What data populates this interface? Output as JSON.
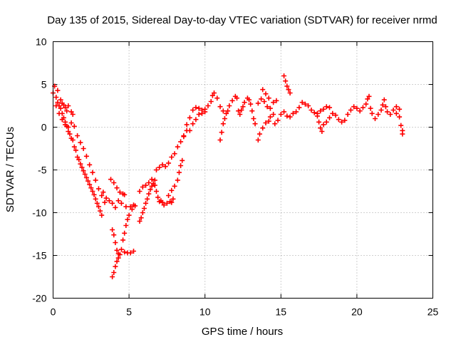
{
  "chart_data": {
    "type": "scatter",
    "title": "Day 135 of 2015, Sidereal Day-to-day VTEC variation (SDTVAR) for receiver nrmd",
    "xlabel": "GPS time / hours",
    "ylabel": "SDTVAR / TECUs",
    "xlim": [
      0,
      25
    ],
    "ylim": [
      -20,
      10
    ],
    "x_ticks": [
      0,
      5,
      10,
      15,
      20,
      25
    ],
    "y_ticks": [
      -20,
      -15,
      -10,
      -5,
      0,
      5,
      10
    ],
    "grid": true,
    "marker": "plus",
    "color": "#ff0000",
    "series": [
      {
        "values": [
          [
            0.0,
            4.0
          ],
          [
            0.1,
            4.8
          ],
          [
            0.2,
            3.5
          ],
          [
            0.3,
            2.9
          ],
          [
            0.4,
            2.5
          ],
          [
            0.5,
            2.2
          ],
          [
            0.6,
            1.6
          ],
          [
            0.7,
            1.1
          ],
          [
            0.8,
            0.6
          ],
          [
            0.9,
            0.1
          ],
          [
            1.0,
            -0.5
          ],
          [
            1.1,
            -0.8
          ],
          [
            1.2,
            -1.3
          ],
          [
            1.3,
            -1.5
          ],
          [
            1.4,
            -2.3
          ],
          [
            1.5,
            -2.7
          ],
          [
            1.6,
            -3.5
          ],
          [
            1.7,
            -3.8
          ],
          [
            1.8,
            -4.3
          ],
          [
            1.9,
            -4.7
          ],
          [
            2.0,
            -5.1
          ],
          [
            2.1,
            -5.5
          ],
          [
            2.2,
            -5.9
          ],
          [
            2.3,
            -6.3
          ],
          [
            2.4,
            -6.7
          ],
          [
            2.5,
            -7.1
          ],
          [
            2.6,
            -7.5
          ],
          [
            2.7,
            -7.9
          ],
          [
            2.8,
            -8.4
          ],
          [
            2.9,
            -8.9
          ],
          [
            3.0,
            -9.3
          ],
          [
            3.1,
            -9.8
          ],
          [
            3.2,
            -10.3
          ],
          [
            0.2,
            2.5
          ],
          [
            0.4,
            1.6
          ],
          [
            0.6,
            0.9
          ],
          [
            0.8,
            0.3
          ],
          [
            1.0,
            0.0
          ],
          [
            1.2,
            0.5
          ],
          [
            1.4,
            0.1
          ],
          [
            1.6,
            -1.0
          ],
          [
            1.8,
            -1.8
          ],
          [
            2.0,
            -2.5
          ],
          [
            2.2,
            -3.4
          ],
          [
            2.4,
            -4.4
          ],
          [
            2.6,
            -5.3
          ],
          [
            2.8,
            -6.2
          ],
          [
            3.0,
            -7.2
          ],
          [
            3.2,
            -8.0
          ],
          [
            3.4,
            -8.8
          ],
          [
            3.3,
            -7.6
          ],
          [
            3.5,
            -8.3
          ],
          [
            3.7,
            -8.6
          ],
          [
            3.9,
            -8.9
          ],
          [
            4.1,
            -9.4
          ],
          [
            4.3,
            -8.6
          ],
          [
            4.5,
            -8.9
          ],
          [
            4.8,
            -9.3
          ],
          [
            5.1,
            -9.3
          ],
          [
            5.3,
            -9.1
          ],
          [
            0.6,
            2.8
          ],
          [
            0.8,
            2.3
          ],
          [
            1.0,
            2.5
          ],
          [
            1.2,
            1.8
          ],
          [
            1.3,
            1.5
          ],
          [
            0.3,
            4.3
          ],
          [
            0.5,
            3.2
          ],
          [
            0.7,
            2.6
          ],
          [
            0.9,
            1.9
          ],
          [
            3.8,
            -6.1
          ],
          [
            4.0,
            -6.5
          ],
          [
            4.2,
            -7.1
          ],
          [
            4.4,
            -7.6
          ],
          [
            4.6,
            -7.8
          ],
          [
            4.7,
            -7.9
          ],
          [
            3.9,
            -12.0
          ],
          [
            4.0,
            -12.6
          ],
          [
            4.1,
            -13.5
          ],
          [
            4.2,
            -14.4
          ],
          [
            4.3,
            -14.8
          ],
          [
            4.5,
            -14.3
          ],
          [
            4.7,
            -14.6
          ],
          [
            4.9,
            -14.7
          ],
          [
            5.1,
            -14.7
          ],
          [
            5.3,
            -14.5
          ],
          [
            3.9,
            -17.5
          ],
          [
            4.0,
            -17.0
          ],
          [
            4.1,
            -16.3
          ],
          [
            4.2,
            -15.7
          ],
          [
            4.3,
            -15.3
          ],
          [
            4.4,
            -14.9
          ],
          [
            4.6,
            -13.2
          ],
          [
            4.7,
            -12.4
          ],
          [
            4.8,
            -11.5
          ],
          [
            4.9,
            -10.8
          ],
          [
            5.0,
            -10.3
          ],
          [
            5.2,
            -9.6
          ],
          [
            5.4,
            -9.2
          ],
          [
            5.7,
            -11.0
          ],
          [
            5.8,
            -10.6
          ],
          [
            5.9,
            -10.0
          ],
          [
            6.0,
            -9.5
          ],
          [
            6.1,
            -8.9
          ],
          [
            6.2,
            -8.4
          ],
          [
            6.3,
            -7.8
          ],
          [
            6.4,
            -7.3
          ],
          [
            6.5,
            -6.9
          ],
          [
            6.6,
            -6.6
          ],
          [
            6.7,
            -6.8
          ],
          [
            6.8,
            -7.5
          ],
          [
            6.9,
            -8.2
          ],
          [
            7.0,
            -8.7
          ],
          [
            7.1,
            -8.6
          ],
          [
            7.2,
            -8.8
          ],
          [
            7.3,
            -9.1
          ],
          [
            7.5,
            -8.9
          ],
          [
            7.7,
            -8.7
          ],
          [
            7.8,
            -8.8
          ],
          [
            7.9,
            -8.4
          ],
          [
            5.7,
            -7.5
          ],
          [
            5.9,
            -7.0
          ],
          [
            6.1,
            -6.8
          ],
          [
            6.3,
            -6.5
          ],
          [
            6.5,
            -6.1
          ],
          [
            6.7,
            -6.2
          ],
          [
            6.8,
            -5.0
          ],
          [
            7.0,
            -4.7
          ],
          [
            7.2,
            -4.4
          ],
          [
            7.4,
            -4.6
          ],
          [
            7.6,
            -4.2
          ],
          [
            7.8,
            -3.5
          ],
          [
            8.0,
            -3.1
          ],
          [
            8.2,
            -2.3
          ],
          [
            8.4,
            -1.7
          ],
          [
            8.6,
            -1.0
          ],
          [
            8.8,
            -0.4
          ],
          [
            7.6,
            -8.0
          ],
          [
            7.8,
            -7.4
          ],
          [
            8.0,
            -6.9
          ],
          [
            8.2,
            -6.2
          ],
          [
            8.3,
            -5.3
          ],
          [
            8.4,
            -4.5
          ],
          [
            8.5,
            -3.9
          ],
          [
            8.6,
            -1.1
          ],
          [
            8.8,
            0.3
          ],
          [
            9.0,
            1.1
          ],
          [
            9.2,
            2.0
          ],
          [
            9.4,
            2.3
          ],
          [
            9.6,
            2.2
          ],
          [
            9.8,
            2.0
          ],
          [
            10.0,
            1.8
          ],
          [
            9.0,
            -0.4
          ],
          [
            9.2,
            0.4
          ],
          [
            9.4,
            0.9
          ],
          [
            9.6,
            1.5
          ],
          [
            9.8,
            1.6
          ],
          [
            10.0,
            2.1
          ],
          [
            10.2,
            2.5
          ],
          [
            10.4,
            3.0
          ],
          [
            10.5,
            3.7
          ],
          [
            10.6,
            4.0
          ],
          [
            10.8,
            3.4
          ],
          [
            11.0,
            2.4
          ],
          [
            11.2,
            1.9
          ],
          [
            11.0,
            -1.5
          ],
          [
            11.1,
            -0.6
          ],
          [
            11.2,
            0.4
          ],
          [
            11.3,
            1.0
          ],
          [
            11.4,
            1.6
          ],
          [
            11.5,
            1.9
          ],
          [
            11.6,
            2.5
          ],
          [
            11.8,
            3.1
          ],
          [
            12.0,
            3.6
          ],
          [
            12.1,
            3.4
          ],
          [
            12.2,
            1.9
          ],
          [
            12.3,
            1.5
          ],
          [
            12.4,
            2.0
          ],
          [
            12.5,
            2.4
          ],
          [
            12.6,
            2.9
          ],
          [
            12.8,
            3.4
          ],
          [
            12.9,
            3.2
          ],
          [
            13.0,
            2.7
          ],
          [
            13.1,
            1.9
          ],
          [
            13.2,
            1.0
          ],
          [
            13.3,
            0.4
          ],
          [
            13.5,
            -1.5
          ],
          [
            13.6,
            -0.8
          ],
          [
            13.8,
            -0.1
          ],
          [
            14.0,
            0.5
          ],
          [
            14.2,
            0.7
          ],
          [
            14.3,
            1.2
          ],
          [
            14.5,
            1.5
          ],
          [
            14.6,
            0.4
          ],
          [
            14.8,
            0.8
          ],
          [
            15.0,
            1.5
          ],
          [
            15.2,
            1.8
          ],
          [
            15.4,
            1.3
          ],
          [
            15.6,
            1.2
          ],
          [
            13.5,
            2.8
          ],
          [
            13.7,
            3.3
          ],
          [
            13.9,
            3.0
          ],
          [
            14.1,
            2.4
          ],
          [
            14.3,
            2.2
          ],
          [
            14.5,
            2.9
          ],
          [
            14.7,
            3.1
          ],
          [
            13.8,
            4.4
          ],
          [
            14.0,
            3.9
          ],
          [
            14.2,
            3.4
          ],
          [
            15.2,
            6.0
          ],
          [
            15.3,
            5.4
          ],
          [
            15.4,
            4.8
          ],
          [
            15.5,
            4.4
          ],
          [
            15.6,
            4.0
          ],
          [
            15.8,
            1.6
          ],
          [
            16.0,
            1.8
          ],
          [
            16.2,
            2.3
          ],
          [
            16.4,
            2.9
          ],
          [
            16.6,
            2.7
          ],
          [
            16.8,
            2.5
          ],
          [
            17.0,
            2.0
          ],
          [
            17.2,
            1.7
          ],
          [
            17.4,
            1.3
          ],
          [
            17.5,
            0.6
          ],
          [
            17.6,
            -0.1
          ],
          [
            17.7,
            -0.5
          ],
          [
            17.8,
            0.3
          ],
          [
            18.0,
            0.6
          ],
          [
            18.2,
            1.1
          ],
          [
            18.4,
            1.6
          ],
          [
            18.6,
            1.4
          ],
          [
            18.8,
            0.9
          ],
          [
            19.0,
            0.6
          ],
          [
            17.4,
            1.6
          ],
          [
            17.6,
            1.9
          ],
          [
            17.8,
            2.1
          ],
          [
            18.0,
            2.4
          ],
          [
            18.2,
            2.3
          ],
          [
            19.2,
            0.8
          ],
          [
            19.4,
            1.5
          ],
          [
            19.6,
            2.0
          ],
          [
            19.8,
            2.4
          ],
          [
            20.0,
            2.2
          ],
          [
            20.2,
            1.9
          ],
          [
            20.4,
            2.3
          ],
          [
            20.6,
            2.7
          ],
          [
            20.7,
            3.3
          ],
          [
            20.8,
            3.6
          ],
          [
            20.9,
            2.2
          ],
          [
            21.0,
            1.6
          ],
          [
            21.2,
            1.0
          ],
          [
            21.4,
            1.5
          ],
          [
            21.6,
            2.0
          ],
          [
            21.7,
            2.6
          ],
          [
            21.8,
            3.2
          ],
          [
            21.9,
            2.4
          ],
          [
            22.0,
            1.8
          ],
          [
            22.2,
            1.5
          ],
          [
            22.4,
            2.0
          ],
          [
            22.6,
            1.6
          ],
          [
            22.8,
            1.2
          ],
          [
            22.9,
            0.2
          ],
          [
            23.0,
            -0.4
          ],
          [
            23.0,
            -0.8
          ],
          [
            22.8,
            2.1
          ],
          [
            22.6,
            2.4
          ]
        ]
      }
    ]
  }
}
